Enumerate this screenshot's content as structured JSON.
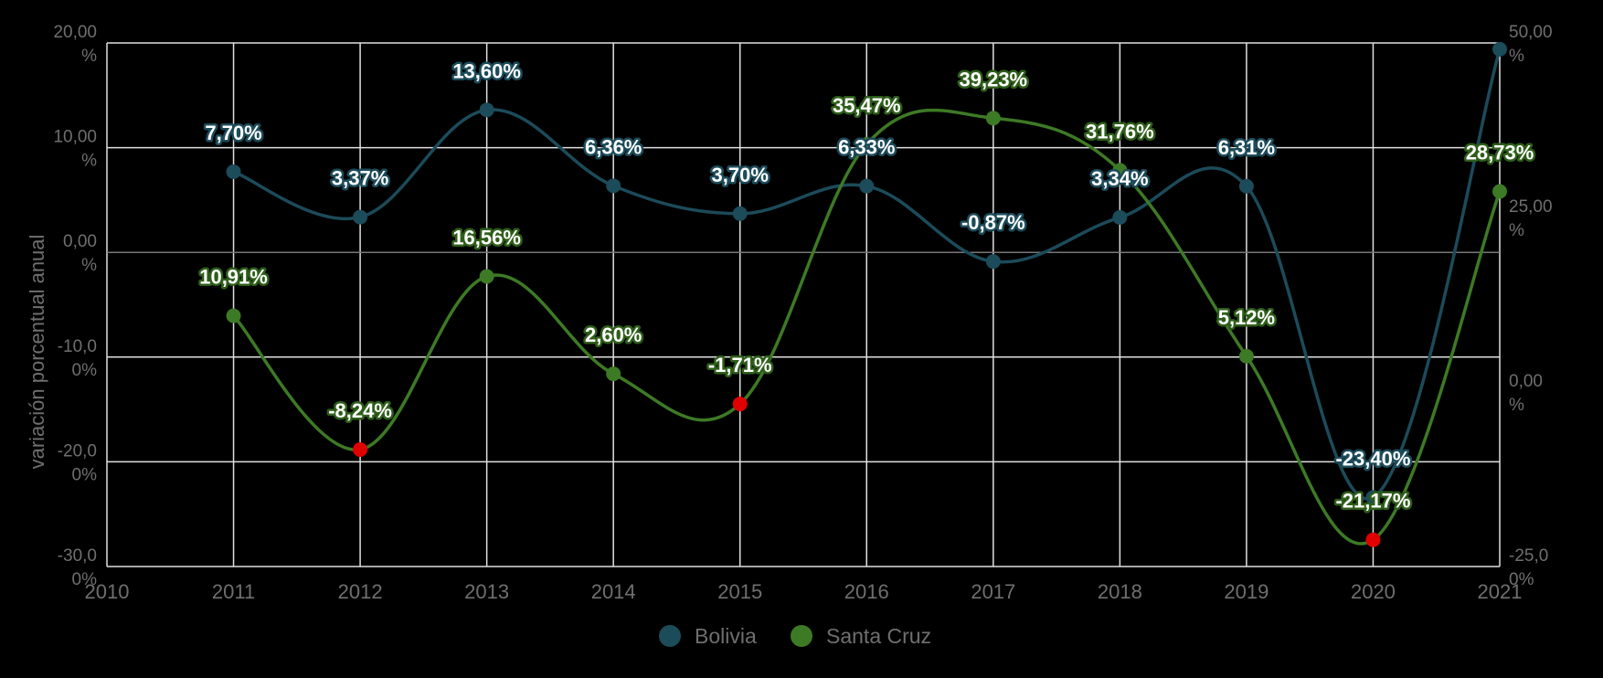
{
  "chart_data": {
    "type": "line",
    "title": "",
    "ylabel": "variación porcentual anual",
    "x": [
      2011,
      2012,
      2013,
      2014,
      2015,
      2016,
      2017,
      2018,
      2019,
      2020,
      2021
    ],
    "xlim": [
      2010,
      2021
    ],
    "x_ticks": [
      "2010",
      "2011",
      "2012",
      "2013",
      "2014",
      "2015",
      "2016",
      "2017",
      "2018",
      "2019",
      "2020",
      "2021"
    ],
    "y_left": {
      "range": [
        -30,
        20
      ],
      "ticks": [
        {
          "value": 20,
          "line1": "20,00",
          "line2": "%"
        },
        {
          "value": 10,
          "line1": "10,00",
          "line2": "%"
        },
        {
          "value": 0,
          "line1": "0,00",
          "line2": "%"
        },
        {
          "value": -10,
          "line1": "-10,0",
          "line2": "0%"
        },
        {
          "value": -20,
          "line1": "-20,0",
          "line2": "0%"
        },
        {
          "value": -30,
          "line1": "-30,0",
          "line2": "0%"
        }
      ]
    },
    "y_right": {
      "range": [
        -25,
        50
      ],
      "ticks": [
        {
          "value": 50,
          "line1": "50,00",
          "line2": "%"
        },
        {
          "value": 25,
          "line1": "25,00",
          "line2": "%"
        },
        {
          "value": 0,
          "line1": "0,00",
          "line2": "%"
        },
        {
          "value": -25,
          "line1": "-25,0",
          "line2": "0%"
        }
      ]
    },
    "grid": true,
    "legend": "bottom-center",
    "negative_marker_color": "#e00000",
    "series": [
      {
        "name": "Bolivia",
        "axis": "left",
        "color": "#1c4b5a",
        "label_fill": "#ffffff",
        "label_stroke": "#1c4b5a",
        "values": [
          7.7,
          3.37,
          13.6,
          6.36,
          3.7,
          6.33,
          -0.87,
          3.34,
          6.31,
          -23.4,
          19.4
        ],
        "labels": [
          "7,70%",
          "3,37%",
          "13,60%",
          "6,36%",
          "3,70%",
          "6,33%",
          "-0,87%",
          "3,34%",
          "6,31%",
          "-23,40%",
          ""
        ]
      },
      {
        "name": "Santa Cruz",
        "axis": "right",
        "color": "#3d7a25",
        "label_fill": "#ffffff",
        "label_stroke": "#2e5e1a",
        "values": [
          10.91,
          -8.24,
          16.56,
          2.6,
          -1.71,
          35.47,
          39.23,
          31.76,
          5.12,
          -21.17,
          28.73
        ],
        "labels": [
          "10,91%",
          "-8,24%",
          "16,56%",
          "2,60%",
          "-1,71%",
          "35,47%",
          "39,23%",
          "31,76%",
          "5,12%",
          "-21,17%",
          "28,73%"
        ]
      }
    ]
  }
}
